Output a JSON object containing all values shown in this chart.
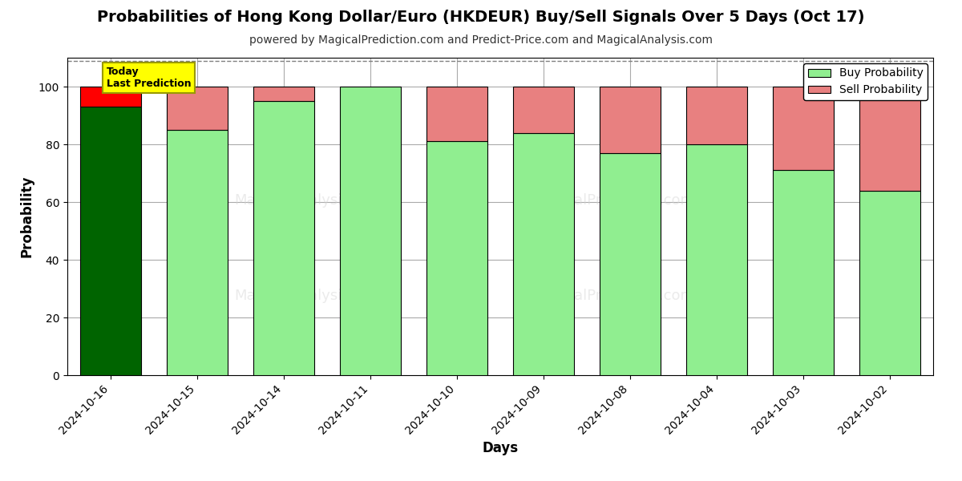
{
  "title": "Probabilities of Hong Kong Dollar/Euro (HKDEUR) Buy/Sell Signals Over 5 Days (Oct 17)",
  "subtitle": "powered by MagicalPrediction.com and Predict-Price.com and MagicalAnalysis.com",
  "xlabel": "Days",
  "ylabel": "Probability",
  "categories": [
    "2024-10-16",
    "2024-10-15",
    "2024-10-14",
    "2024-10-11",
    "2024-10-10",
    "2024-10-09",
    "2024-10-08",
    "2024-10-04",
    "2024-10-03",
    "2024-10-02"
  ],
  "buy_values": [
    93,
    85,
    95,
    100,
    81,
    84,
    77,
    80,
    71,
    64
  ],
  "sell_values": [
    7,
    15,
    5,
    0,
    19,
    16,
    23,
    20,
    29,
    36
  ],
  "today_buy_color": "#006400",
  "today_sell_color": "#FF0000",
  "buy_color": "#90EE90",
  "sell_color": "#E88080",
  "bar_edge_color": "#000000",
  "ylim": [
    0,
    110
  ],
  "yticks": [
    0,
    20,
    40,
    60,
    80,
    100
  ],
  "dashed_line_y": 109,
  "annotation_text": "Today\nLast Prediction",
  "annotation_bg": "#FFFF00",
  "annotation_edge": "#999900",
  "grid_color": "#aaaaaa",
  "title_fontsize": 14,
  "subtitle_fontsize": 10,
  "label_fontsize": 12,
  "tick_fontsize": 10,
  "legend_fontsize": 10,
  "background_color": "#ffffff",
  "bar_width": 0.7
}
